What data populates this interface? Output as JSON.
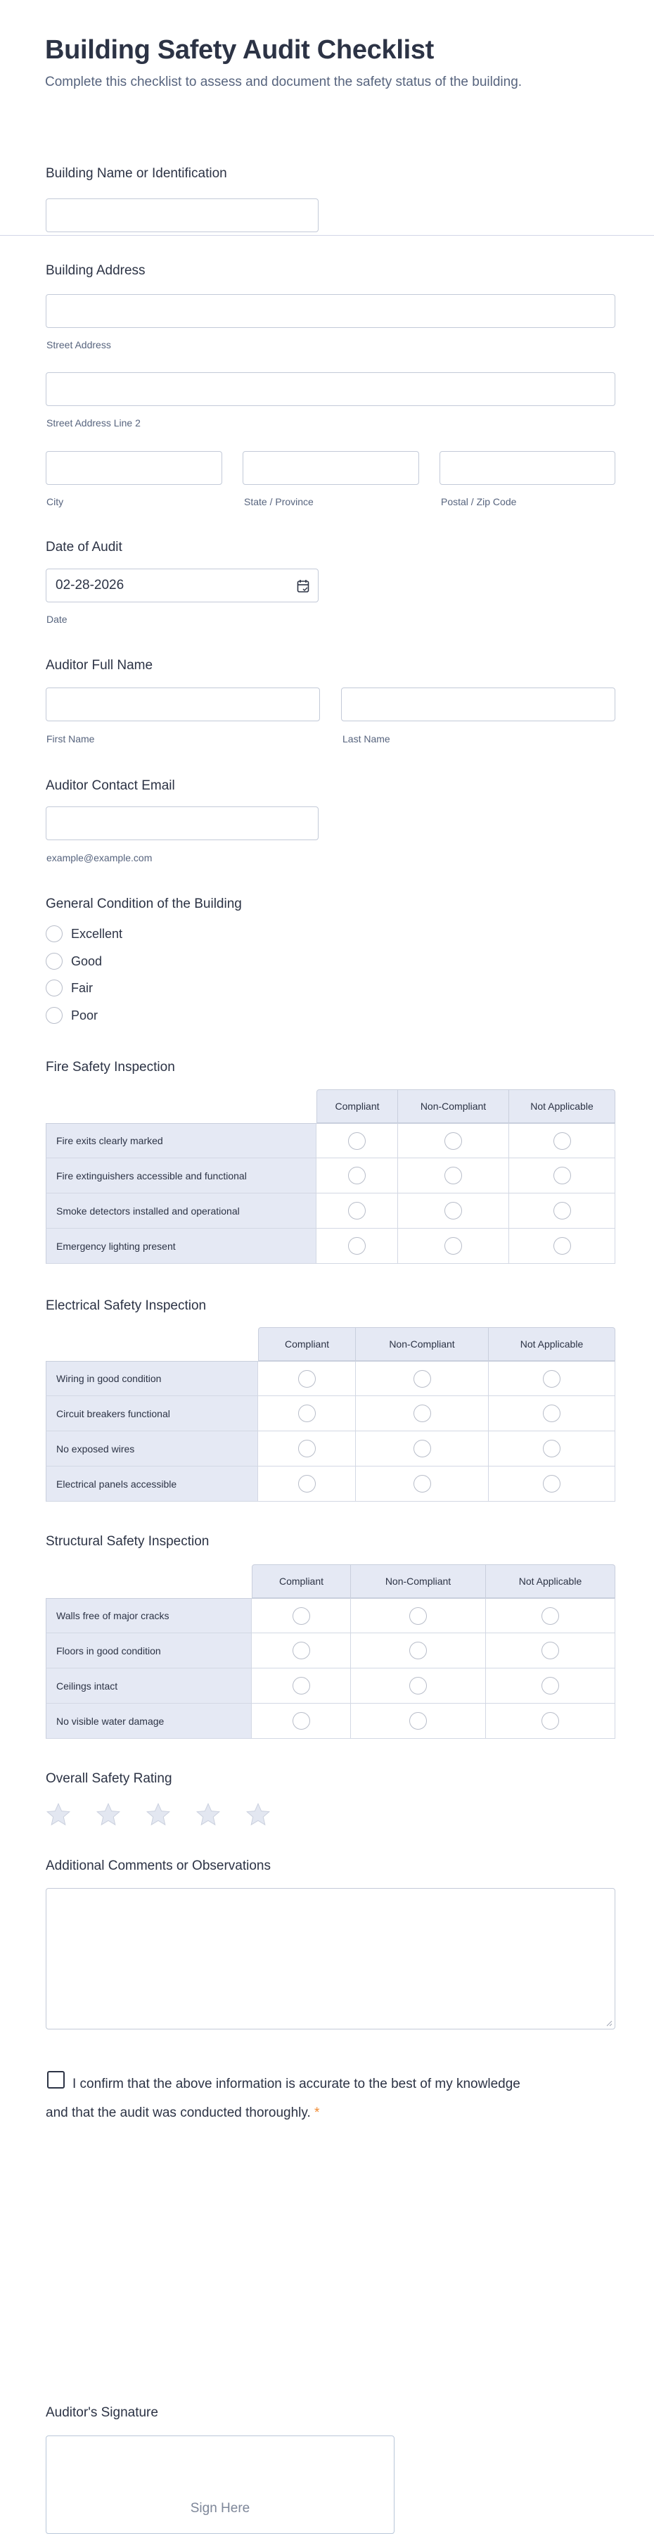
{
  "header": {
    "title": "Building Safety Audit Checklist",
    "subtitle": "Complete this checklist to assess and document the safety status of the building."
  },
  "building_name": {
    "label": "Building Name or Identification",
    "value": ""
  },
  "address": {
    "label": "Building Address",
    "street": "Street Address",
    "street2": "Street Address Line 2",
    "city": "City",
    "state": "State / Province",
    "zip": "Postal / Zip Code"
  },
  "date": {
    "label": "Date of Audit",
    "value": "02-28-2026",
    "sublabel": "Date",
    "icon": "calendar-icon"
  },
  "auditor": {
    "label": "Auditor Full Name",
    "first": "First Name",
    "last": "Last Name"
  },
  "email": {
    "label": "Auditor Contact Email",
    "sublabel": "example@example.com"
  },
  "condition": {
    "label": "General Condition of the Building",
    "options": [
      "Excellent",
      "Good",
      "Fair",
      "Poor"
    ]
  },
  "matrices": [
    {
      "title": "Fire Safety Inspection",
      "columns": [
        "Compliant",
        "Non-Compliant",
        "Not Applicable"
      ],
      "rows": [
        "Fire exits clearly marked",
        "Fire extinguishers accessible and functional",
        "Smoke detectors installed and operational",
        "Emergency lighting present"
      ]
    },
    {
      "title": "Electrical Safety Inspection",
      "columns": [
        "Compliant",
        "Non-Compliant",
        "Not Applicable"
      ],
      "rows": [
        "Wiring in good condition",
        "Circuit breakers functional",
        "No exposed wires",
        "Electrical panels accessible"
      ]
    },
    {
      "title": "Structural Safety Inspection",
      "columns": [
        "Compliant",
        "Non-Compliant",
        "Not Applicable"
      ],
      "rows": [
        "Walls free of major cracks",
        "Floors in good condition",
        "Ceilings intact",
        "No visible water damage"
      ]
    }
  ],
  "rating": {
    "label": "Overall Safety Rating",
    "max": 5,
    "value": 0,
    "star_color": "#e3e7f1"
  },
  "comments": {
    "label": "Additional Comments or Observations"
  },
  "confirm": {
    "text": "I confirm that the above information is accurate to the best of my knowledge and that the audit was conducted thoroughly.",
    "required": "*"
  },
  "signature": {
    "label": "Auditor's Signature",
    "hint": "Sign Here"
  }
}
